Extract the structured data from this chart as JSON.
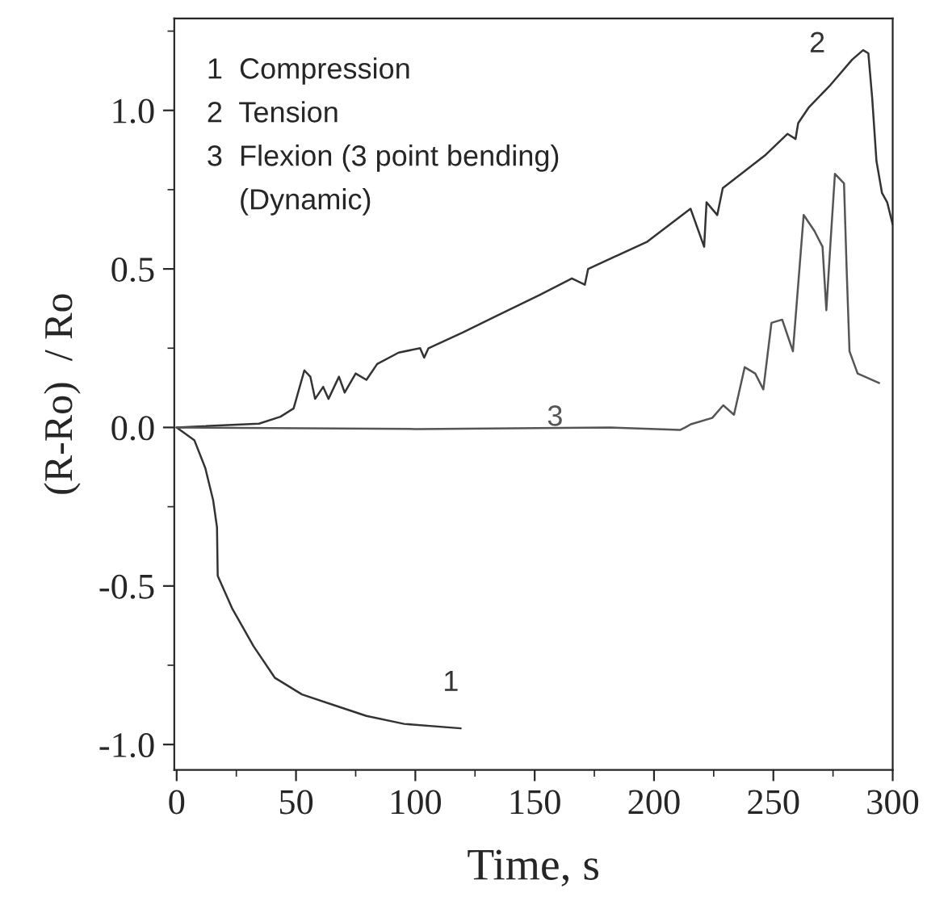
{
  "chart_data": {
    "type": "line",
    "xlabel": "Time, s",
    "ylabel": "(R-Ro)  / Ro",
    "xlim": [
      -1,
      300
    ],
    "ylim": [
      -1.08,
      1.29
    ],
    "xticks": [
      0,
      50,
      100,
      150,
      200,
      250,
      300
    ],
    "yticks": [
      {
        "value": -1.0,
        "label": "-1.0"
      },
      {
        "value": -0.5,
        "label": "-0.5"
      },
      {
        "value": 0.0,
        "label": "0.0"
      },
      {
        "value": 0.5,
        "label": "0.5"
      },
      {
        "value": 1.0,
        "label": "1.0"
      }
    ],
    "grid": false,
    "legend": false,
    "marker": "none",
    "line_style": "solid",
    "series": [
      {
        "name": "1",
        "color": "#333333",
        "x": [
          0,
          7.4,
          12,
          15.3,
          16.9,
          17.2,
          23.2,
          32.2,
          41.2,
          52.5,
          66,
          79.5,
          95.3,
          119
        ],
        "values": [
          0,
          -0.04,
          -0.128,
          -0.23,
          -0.315,
          -0.468,
          -0.57,
          -0.69,
          -0.79,
          -0.842,
          -0.876,
          -0.91,
          -0.935,
          -0.949
        ]
      },
      {
        "name": "2",
        "color": "#333333",
        "x": [
          0,
          34.5,
          43.5,
          49,
          53.5,
          56,
          58,
          61.4,
          63.6,
          68,
          70.4,
          75,
          79.5,
          84,
          93,
          102,
          103.7,
          105.5,
          120,
          133.6,
          151.9,
          165.6,
          171,
          172.4,
          197.2,
          215.3,
          221,
          222,
          226.5,
          228.8,
          246.8,
          255.9,
          259.3,
          260.4,
          264.9,
          273.9,
          283,
          287.6,
          289.8,
          291.4,
          293.2,
          295.5,
          297.7,
          300
        ],
        "values": [
          0,
          0.012,
          0.034,
          0.06,
          0.18,
          0.16,
          0.09,
          0.128,
          0.09,
          0.16,
          0.11,
          0.17,
          0.15,
          0.2,
          0.236,
          0.25,
          0.22,
          0.25,
          0.3,
          0.35,
          0.417,
          0.47,
          0.45,
          0.5,
          0.586,
          0.69,
          0.57,
          0.71,
          0.67,
          0.755,
          0.86,
          0.926,
          0.91,
          0.96,
          1.01,
          1.08,
          1.16,
          1.19,
          1.18,
          1.04,
          0.84,
          0.74,
          0.71,
          0.64
        ]
      },
      {
        "name": "3",
        "color": "#555555",
        "x": [
          0,
          100,
          181.6,
          210.9,
          213.1,
          215.4,
          224.4,
          229,
          233.5,
          238,
          242.4,
          245.8,
          249.2,
          253.7,
          258.2,
          262.7,
          267.2,
          270.6,
          272.2,
          274,
          275.8,
          279.6,
          280.7,
          281.9,
          285.3,
          294.3
        ],
        "values": [
          0,
          -0.005,
          0,
          -0.008,
          0,
          0.01,
          0.03,
          0.07,
          0.04,
          0.19,
          0.17,
          0.12,
          0.33,
          0.34,
          0.24,
          0.67,
          0.62,
          0.57,
          0.37,
          0.59,
          0.8,
          0.77,
          0.5,
          0.24,
          0.17,
          0.14
        ]
      }
    ],
    "annotations": [
      "1  Compression",
      "2  Tension",
      "3  Flexion (3 point bending)",
      "    (Dynamic)"
    ]
  }
}
